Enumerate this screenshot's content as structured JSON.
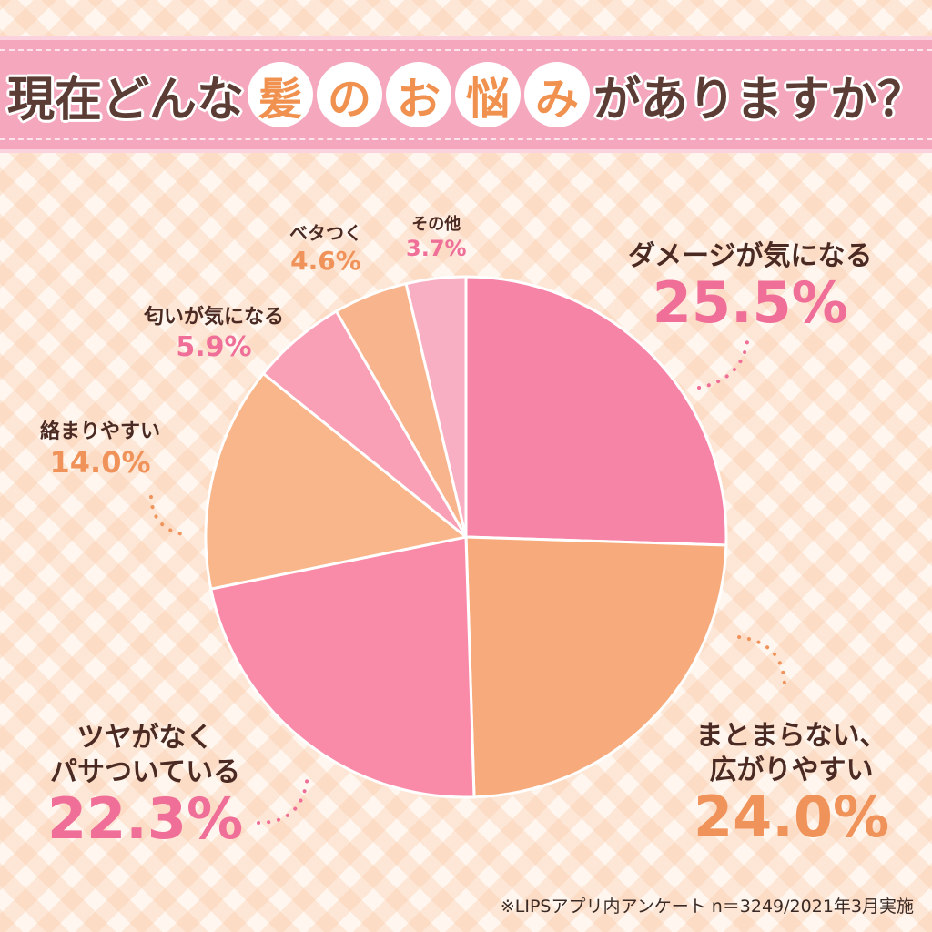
{
  "header": {
    "title_parts": [
      {
        "text": "現在どんな",
        "style": "plain"
      },
      {
        "text": "髪",
        "style": "circle"
      },
      {
        "text": "の",
        "style": "circle"
      },
      {
        "text": "お",
        "style": "circle"
      },
      {
        "text": "悩",
        "style": "circle"
      },
      {
        "text": "み",
        "style": "circle"
      },
      {
        "text": "がありますか？",
        "style": "plain"
      }
    ]
  },
  "colors": {
    "pink": "#f684a6",
    "orange": "#f7ab7c",
    "pink_light": "#f9a6bd",
    "pink_text": "#ef6f98",
    "orange_text": "#f0935a"
  },
  "chart_data": {
    "type": "pie",
    "title": "現在どんな髪のお悩みがありますか？",
    "slices": [
      {
        "label": "ダメージが気になる",
        "value": 25.5,
        "value_label": "25.5%",
        "color": "#f684a6"
      },
      {
        "label": "まとまらない、広がりやすい",
        "value": 24.0,
        "value_label": "24.0%",
        "color": "#f7ab7c"
      },
      {
        "label": "ツヤがなくパサついている",
        "value": 22.3,
        "value_label": "22.3%",
        "color": "#f98ba9"
      },
      {
        "label": "絡まりやすい",
        "value": 14.0,
        "value_label": "14.0%",
        "color": "#f9b68a"
      },
      {
        "label": "匂いが気になる",
        "value": 5.9,
        "value_label": "5.9%",
        "color": "#f9a0b7"
      },
      {
        "label": "ベタつく",
        "value": 4.6,
        "value_label": "4.6%",
        "color": "#f8b48c"
      },
      {
        "label": "その他",
        "value": 3.7,
        "value_label": "3.7%",
        "color": "#f9afc3"
      }
    ],
    "start": "top",
    "direction": "clockwise"
  },
  "labels": {
    "damage": {
      "line1": "ダメージが気になる",
      "pct": "25.5%"
    },
    "matomaranai": {
      "line1": "まとまらない、",
      "line2": "広がりやすい",
      "pct": "24.0%"
    },
    "tsuya": {
      "line1": "ツヤがなく",
      "line2": "パサついている",
      "pct": "22.3%"
    },
    "karamari": {
      "line1": "絡まりやすい",
      "pct": "14.0%"
    },
    "nioi": {
      "line1": "匂いが気になる",
      "pct": "5.9%"
    },
    "betatsuku": {
      "line1": "ベタつく",
      "pct": "4.6%"
    },
    "sonota": {
      "line1": "その他",
      "pct": "3.7%"
    }
  },
  "footer": {
    "note": "※LIPSアプリ内アンケート n＝3249/2021年3月実施"
  }
}
